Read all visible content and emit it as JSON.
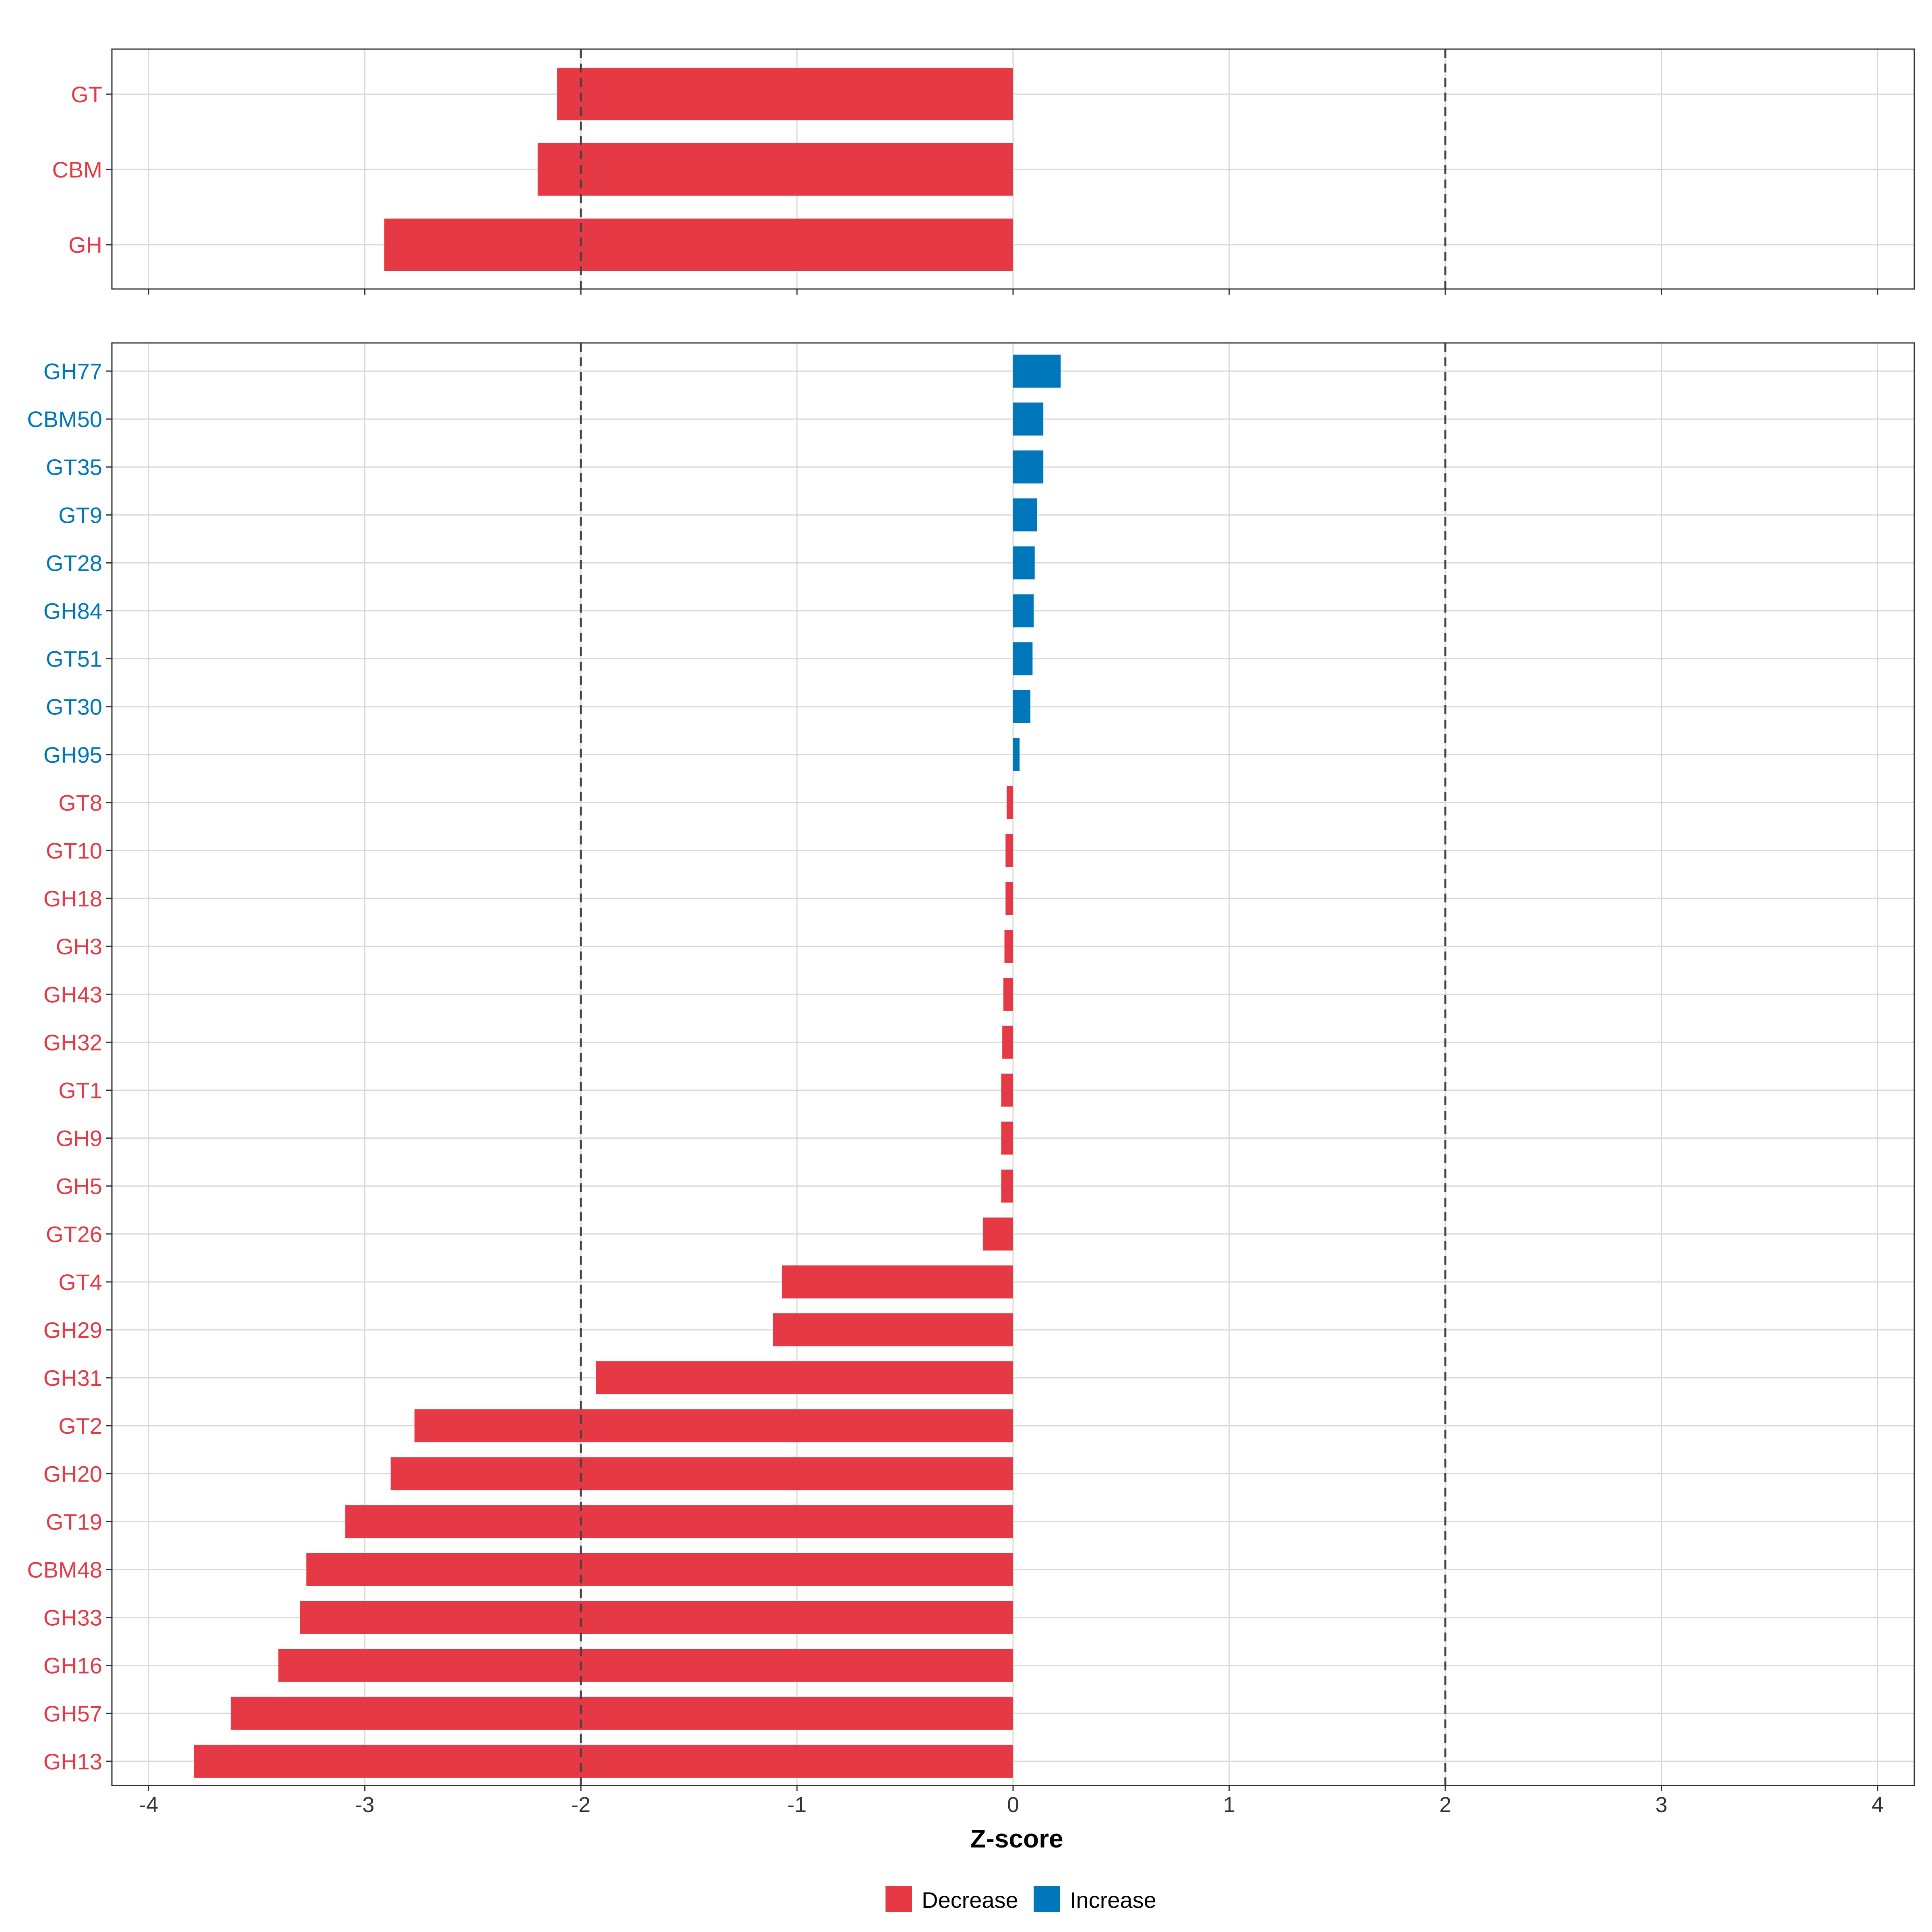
{
  "chart_data": [
    {
      "type": "bar",
      "orientation": "horizontal",
      "panel": "top",
      "categories": [
        "GT",
        "CBM",
        "GH"
      ],
      "values": [
        -2.11,
        -2.2,
        -2.91
      ],
      "directions": [
        "Decrease",
        "Decrease",
        "Decrease"
      ],
      "xlim": [
        -4,
        4
      ],
      "reference_lines": [
        -2,
        2
      ],
      "grid": true
    },
    {
      "type": "bar",
      "orientation": "horizontal",
      "panel": "bottom",
      "categories": [
        "GH77",
        "CBM50",
        "GT35",
        "GT9",
        "GT28",
        "GH84",
        "GT51",
        "GT30",
        "GH95",
        "GT8",
        "GT10",
        "GH18",
        "GH3",
        "GH43",
        "GH32",
        "GT1",
        "GH9",
        "GH5",
        "GT26",
        "GT4",
        "GH29",
        "GH31",
        "GT2",
        "GH20",
        "GT19",
        "CBM48",
        "GH33",
        "GH16",
        "GH57",
        "GH13"
      ],
      "values": [
        0.22,
        0.14,
        0.14,
        0.11,
        0.1,
        0.095,
        0.09,
        0.08,
        0.03,
        -0.03,
        -0.035,
        -0.035,
        -0.04,
        -0.045,
        -0.05,
        -0.055,
        -0.055,
        -0.055,
        -0.14,
        -1.07,
        -1.11,
        -1.93,
        -2.77,
        -2.88,
        -3.09,
        -3.27,
        -3.3,
        -3.4,
        -3.62,
        -3.79
      ],
      "directions": [
        "Increase",
        "Increase",
        "Increase",
        "Increase",
        "Increase",
        "Increase",
        "Increase",
        "Increase",
        "Increase",
        "Decrease",
        "Decrease",
        "Decrease",
        "Decrease",
        "Decrease",
        "Decrease",
        "Decrease",
        "Decrease",
        "Decrease",
        "Decrease",
        "Decrease",
        "Decrease",
        "Decrease",
        "Decrease",
        "Decrease",
        "Decrease",
        "Decrease",
        "Decrease",
        "Decrease",
        "Decrease",
        "Decrease"
      ],
      "xlim": [
        -4,
        4
      ],
      "xticks": [
        -4,
        -3,
        -2,
        -1,
        0,
        1,
        2,
        3,
        4
      ],
      "xlabel": "Z-score",
      "reference_lines": [
        -2,
        2
      ],
      "grid": true
    }
  ],
  "legend": {
    "placement": "bottom",
    "items": [
      {
        "label": "Decrease",
        "color": "#e63946"
      },
      {
        "label": "Increase",
        "color": "#0077bb"
      }
    ]
  },
  "colors": {
    "Decrease": "#e63946",
    "Increase": "#0077bb",
    "grid": "#d9d9d9",
    "panel_border": "#333333",
    "reference_line": "#444444"
  }
}
